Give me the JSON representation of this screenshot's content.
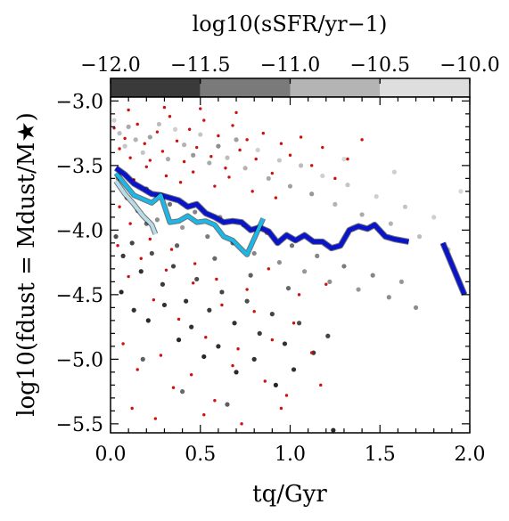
{
  "chart_data": {
    "type": "scatter",
    "xlabel": "tq/Gyr",
    "ylabel": "log10(fdust = Mdust/M★)",
    "colorbar_label": "log10(sSFR/yr−1)",
    "xlim": [
      0.0,
      2.0
    ],
    "ylim": [
      -5.57,
      -2.97
    ],
    "x_ticks": [
      0.0,
      0.5,
      1.0,
      1.5,
      2.0
    ],
    "x_tick_labels": [
      "0.0",
      "0.5",
      "1.0",
      "1.5",
      "2.0"
    ],
    "y_ticks": [
      -3.0,
      -3.5,
      -4.0,
      -4.5,
      -5.0,
      -5.5
    ],
    "y_tick_labels": [
      "−3.0",
      "−3.5",
      "−4.0",
      "−4.5",
      "−5.0",
      "−5.5"
    ],
    "colorbar": {
      "range": [
        -12.0,
        -10.0
      ],
      "ticks": [
        -12.0,
        -11.5,
        -11.0,
        -10.5,
        -10.0
      ],
      "tick_labels": [
        "−12.0",
        "−11.5",
        "−11.0",
        "−10.5",
        "−10.0"
      ],
      "bins": [
        {
          "from": -12.0,
          "to": -11.5,
          "color": "#3a3a3a"
        },
        {
          "from": -11.5,
          "to": -11.0,
          "color": "#7a7a7a"
        },
        {
          "from": -11.0,
          "to": -10.5,
          "color": "#b4b4b4"
        },
        {
          "from": -10.5,
          "to": -10.0,
          "color": "#dedede"
        }
      ]
    },
    "series": [
      {
        "color": "#0a14c8",
        "line_width": 5,
        "segments": [
          [
            [
              0.03,
              -3.52
            ],
            [
              0.08,
              -3.57
            ],
            [
              0.13,
              -3.64
            ],
            [
              0.18,
              -3.68
            ],
            [
              0.23,
              -3.72
            ],
            [
              0.28,
              -3.73
            ],
            [
              0.33,
              -3.75
            ],
            [
              0.38,
              -3.77
            ],
            [
              0.43,
              -3.82
            ],
            [
              0.48,
              -3.8
            ],
            [
              0.53,
              -3.87
            ],
            [
              0.58,
              -3.9
            ],
            [
              0.63,
              -3.94
            ],
            [
              0.68,
              -3.93
            ],
            [
              0.73,
              -3.94
            ],
            [
              0.78,
              -4.0
            ],
            [
              0.83,
              -3.98
            ],
            [
              0.88,
              -4.01
            ],
            [
              0.93,
              -4.1
            ],
            [
              0.98,
              -4.04
            ],
            [
              1.03,
              -4.08
            ],
            [
              1.08,
              -4.04
            ],
            [
              1.13,
              -4.09
            ],
            [
              1.18,
              -4.09
            ],
            [
              1.23,
              -4.14
            ],
            [
              1.28,
              -4.12
            ],
            [
              1.33,
              -4.0
            ],
            [
              1.38,
              -3.97
            ],
            [
              1.43,
              -3.99
            ],
            [
              1.47,
              -3.96
            ],
            [
              1.53,
              -4.05
            ],
            [
              1.58,
              -4.07
            ],
            [
              1.66,
              -4.09
            ]
          ],
          [
            [
              1.85,
              -4.1
            ],
            [
              1.97,
              -4.5
            ]
          ]
        ]
      },
      {
        "color": "#1ab8e8",
        "line_width": 4,
        "segments": [
          [
            [
              0.03,
              -3.56
            ],
            [
              0.13,
              -3.73
            ],
            [
              0.23,
              -3.79
            ],
            [
              0.28,
              -3.73
            ],
            [
              0.33,
              -3.94
            ],
            [
              0.38,
              -3.93
            ],
            [
              0.43,
              -3.89
            ],
            [
              0.48,
              -3.94
            ],
            [
              0.53,
              -3.93
            ],
            [
              0.58,
              -3.96
            ],
            [
              0.63,
              -4.05
            ],
            [
              0.68,
              -4.08
            ],
            [
              0.73,
              -4.15
            ],
            [
              0.76,
              -4.19
            ],
            [
              0.85,
              -3.91
            ]
          ]
        ]
      },
      {
        "color": "#b8dde8",
        "line_width": 4,
        "segments": [
          [
            [
              0.03,
              -3.62
            ],
            [
              0.08,
              -3.72
            ],
            [
              0.13,
              -3.8
            ],
            [
              0.18,
              -3.89
            ],
            [
              0.23,
              -3.96
            ],
            [
              0.25,
              -4.03
            ]
          ]
        ]
      }
    ],
    "red_dots": [
      [
        0.02,
        -3.21
      ],
      [
        0.05,
        -3.37
      ],
      [
        0.08,
        -3.29
      ],
      [
        0.11,
        -3.44
      ],
      [
        0.15,
        -3.18
      ],
      [
        0.19,
        -3.33
      ],
      [
        0.22,
        -3.46
      ],
      [
        0.26,
        -3.24
      ],
      [
        0.29,
        -3.39
      ],
      [
        0.33,
        -3.12
      ],
      [
        0.37,
        -3.31
      ],
      [
        0.41,
        -3.47
      ],
      [
        0.44,
        -3.22
      ],
      [
        0.48,
        -3.36
      ],
      [
        0.52,
        -3.15
      ],
      [
        0.56,
        -3.43
      ],
      [
        0.6,
        -3.27
      ],
      [
        0.64,
        -3.52
      ],
      [
        0.68,
        -3.19
      ],
      [
        0.72,
        -3.38
      ],
      [
        0.76,
        -3.3
      ],
      [
        0.81,
        -3.45
      ],
      [
        0.85,
        -3.25
      ],
      [
        0.9,
        -3.56
      ],
      [
        0.95,
        -3.33
      ],
      [
        1.0,
        -3.42
      ],
      [
        1.06,
        -3.28
      ],
      [
        1.12,
        -3.5
      ],
      [
        1.18,
        -3.36
      ],
      [
        1.25,
        -3.6
      ],
      [
        1.32,
        -3.45
      ],
      [
        1.4,
        -3.3
      ],
      [
        0.06,
        -3.56
      ],
      [
        0.13,
        -3.61
      ],
      [
        0.2,
        -3.51
      ],
      [
        0.31,
        -3.58
      ],
      [
        0.39,
        -3.63
      ],
      [
        0.46,
        -3.55
      ],
      [
        0.58,
        -3.66
      ],
      [
        0.66,
        -3.59
      ],
      [
        0.79,
        -3.7
      ],
      [
        0.92,
        -3.75
      ],
      [
        0.1,
        -3.07
      ],
      [
        0.3,
        -3.05
      ],
      [
        0.5,
        -3.06
      ],
      [
        0.7,
        -3.09
      ],
      [
        0.04,
        -4.12
      ],
      [
        0.1,
        -4.36
      ],
      [
        0.17,
        -4.22
      ],
      [
        0.24,
        -4.54
      ],
      [
        0.31,
        -4.31
      ],
      [
        0.38,
        -4.69
      ],
      [
        0.46,
        -4.41
      ],
      [
        0.53,
        -4.83
      ],
      [
        0.62,
        -4.58
      ],
      [
        0.71,
        -4.92
      ],
      [
        0.8,
        -4.63
      ],
      [
        0.9,
        -4.85
      ],
      [
        1.02,
        -4.72
      ],
      [
        1.12,
        -4.95
      ],
      [
        0.07,
        -4.88
      ],
      [
        0.15,
        -5.08
      ],
      [
        0.28,
        -4.97
      ],
      [
        0.35,
        -5.22
      ],
      [
        0.45,
        -5.12
      ],
      [
        0.58,
        -5.32
      ],
      [
        0.68,
        -5.05
      ],
      [
        0.86,
        -5.17
      ],
      [
        0.98,
        -5.28
      ],
      [
        0.12,
        -5.38
      ],
      [
        0.25,
        -5.46
      ],
      [
        0.52,
        -5.43
      ],
      [
        0.73,
        -5.5
      ],
      [
        0.95,
        -5.38
      ],
      [
        1.17,
        -5.2
      ],
      [
        0.05,
        -3.82
      ],
      [
        0.11,
        -3.95
      ],
      [
        0.22,
        -4.07
      ],
      [
        0.34,
        -4.15
      ],
      [
        0.47,
        -4.26
      ],
      [
        0.59,
        -4.38
      ],
      [
        0.76,
        -4.46
      ],
      [
        0.88,
        -4.3
      ],
      [
        1.05,
        -4.5
      ],
      [
        1.2,
        -4.42
      ]
    ],
    "gray_dots": [
      [
        0.02,
        -3.15,
        -10.2
      ],
      [
        0.05,
        -3.25,
        -10.4
      ],
      [
        0.08,
        -3.35,
        -10.3
      ],
      [
        0.1,
        -3.2,
        -10.6
      ],
      [
        0.14,
        -3.3,
        -10.5
      ],
      [
        0.18,
        -3.4,
        -10.3
      ],
      [
        0.22,
        -3.28,
        -10.7
      ],
      [
        0.27,
        -3.18,
        -10.4
      ],
      [
        0.32,
        -3.45,
        -10.6
      ],
      [
        0.36,
        -3.22,
        -10.2
      ],
      [
        0.41,
        -3.34,
        -10.5
      ],
      [
        0.46,
        -3.42,
        -10.8
      ],
      [
        0.5,
        -3.26,
        -10.3
      ],
      [
        0.55,
        -3.48,
        -10.6
      ],
      [
        0.6,
        -3.35,
        -10.9
      ],
      [
        0.65,
        -3.44,
        -10.4
      ],
      [
        0.7,
        -3.3,
        -10.7
      ],
      [
        0.75,
        -3.52,
        -10.5
      ],
      [
        0.82,
        -3.38,
        -10.2
      ],
      [
        0.88,
        -3.6,
        -10.6
      ],
      [
        0.94,
        -3.46,
        -10.3
      ],
      [
        1.0,
        -3.66,
        -10.7
      ],
      [
        1.06,
        -3.5,
        -10.4
      ],
      [
        1.12,
        -3.72,
        -10.8
      ],
      [
        1.18,
        -3.58,
        -10.2
      ],
      [
        1.25,
        -3.8,
        -10.5
      ],
      [
        1.32,
        -3.65,
        -10.3
      ],
      [
        1.4,
        -3.88,
        -10.6
      ],
      [
        1.48,
        -3.74,
        -10.2
      ],
      [
        1.56,
        -3.95,
        -10.5
      ],
      [
        1.64,
        -3.82,
        -10.3
      ],
      [
        1.72,
        -4.05,
        -10.4
      ],
      [
        1.8,
        -3.9,
        -10.2
      ],
      [
        1.88,
        -4.15,
        -10.3
      ],
      [
        1.95,
        -3.7,
        -10.1
      ],
      [
        1.58,
        -3.55,
        -10.2
      ],
      [
        1.3,
        -3.45,
        -10.1
      ],
      [
        0.04,
        -3.6,
        -10.9
      ],
      [
        0.09,
        -3.75,
        -11.0
      ],
      [
        0.15,
        -3.85,
        -10.8
      ],
      [
        0.2,
        -3.68,
        -11.1
      ],
      [
        0.26,
        -3.92,
        -10.9
      ],
      [
        0.33,
        -3.8,
        -11.2
      ],
      [
        0.4,
        -3.98,
        -10.8
      ],
      [
        0.47,
        -3.86,
        -11.0
      ],
      [
        0.54,
        -4.05,
        -11.1
      ],
      [
        0.61,
        -3.9,
        -10.9
      ],
      [
        0.68,
        -4.1,
        -11.2
      ],
      [
        0.74,
        -3.96,
        -10.8
      ],
      [
        0.8,
        -4.18,
        -11.0
      ],
      [
        0.87,
        -4.02,
        -11.1
      ],
      [
        0.94,
        -4.25,
        -10.9
      ],
      [
        1.01,
        -4.12,
        -11.2
      ],
      [
        1.08,
        -4.32,
        -10.8
      ],
      [
        1.15,
        -4.2,
        -11.0
      ],
      [
        1.22,
        -4.4,
        -10.9
      ],
      [
        1.3,
        -4.28,
        -11.1
      ],
      [
        1.38,
        -4.46,
        -10.8
      ],
      [
        1.46,
        -4.35,
        -11.0
      ],
      [
        1.55,
        -4.52,
        -10.9
      ],
      [
        1.62,
        -4.4,
        -10.8
      ],
      [
        1.7,
        -4.6,
        -10.9
      ],
      [
        0.03,
        -4.05,
        -11.6
      ],
      [
        0.07,
        -4.2,
        -11.8
      ],
      [
        0.12,
        -4.1,
        -11.7
      ],
      [
        0.17,
        -4.32,
        -11.9
      ],
      [
        0.23,
        -4.18,
        -11.6
      ],
      [
        0.29,
        -4.42,
        -11.8
      ],
      [
        0.35,
        -4.28,
        -11.7
      ],
      [
        0.42,
        -4.55,
        -11.9
      ],
      [
        0.48,
        -4.38,
        -11.6
      ],
      [
        0.55,
        -4.62,
        -11.8
      ],
      [
        0.62,
        -4.48,
        -11.7
      ],
      [
        0.69,
        -4.72,
        -11.9
      ],
      [
        0.76,
        -4.55,
        -11.6
      ],
      [
        0.83,
        -4.8,
        -11.8
      ],
      [
        0.9,
        -4.65,
        -11.7
      ],
      [
        0.97,
        -4.88,
        -11.9
      ],
      [
        1.05,
        -4.72,
        -11.6
      ],
      [
        1.13,
        -4.95,
        -11.8
      ],
      [
        1.21,
        -4.82,
        -11.7
      ],
      [
        0.06,
        -4.48,
        -12.0
      ],
      [
        0.13,
        -4.62,
        -11.9
      ],
      [
        0.21,
        -4.7,
        -12.0
      ],
      [
        0.3,
        -4.58,
        -11.9
      ],
      [
        0.38,
        -4.85,
        -12.0
      ],
      [
        0.45,
        -4.75,
        -11.9
      ],
      [
        0.52,
        -4.98,
        -12.0
      ],
      [
        0.6,
        -4.9,
        -11.9
      ],
      [
        0.7,
        -5.1,
        -12.0
      ],
      [
        0.8,
        -5.0,
        -11.9
      ],
      [
        0.92,
        -5.2,
        -12.0
      ],
      [
        1.02,
        -5.08,
        -11.9
      ],
      [
        1.24,
        -5.55,
        -12.0
      ],
      [
        0.18,
        -5.0,
        -11.4
      ],
      [
        0.4,
        -5.25,
        -11.3
      ],
      [
        0.65,
        -5.35,
        -11.4
      ],
      [
        0.2,
        -3.95,
        -11.3
      ],
      [
        0.37,
        -4.12,
        -11.4
      ],
      [
        0.58,
        -4.22,
        -11.3
      ],
      [
        0.78,
        -4.35,
        -11.4
      ],
      [
        0.99,
        -4.45,
        -11.3
      ]
    ]
  }
}
